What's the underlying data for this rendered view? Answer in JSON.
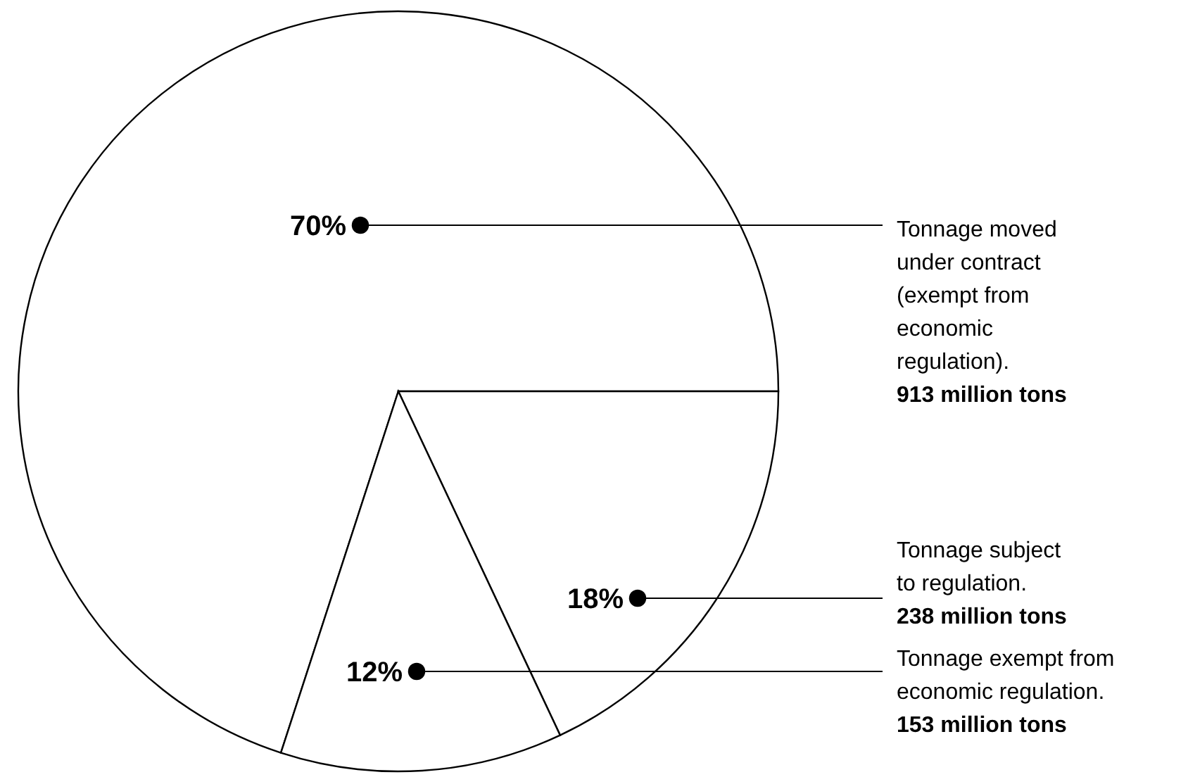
{
  "chart_data": {
    "type": "pie",
    "categories": [
      "Tonnage moved\nunder contract\n(exempt from\neconomic\nregulation).",
      "Tonnage subject\nto regulation.",
      "Tonnage exempt from\neconomic regulation."
    ],
    "values": [
      70,
      18,
      12
    ],
    "colors": [
      "#ffffff",
      "#ffffff",
      "#ffffff"
    ],
    "value_labels": [
      "70%",
      "18%",
      "12%"
    ],
    "annotations": [
      "913 million tons",
      "238 million tons",
      "153 million tons"
    ]
  }
}
